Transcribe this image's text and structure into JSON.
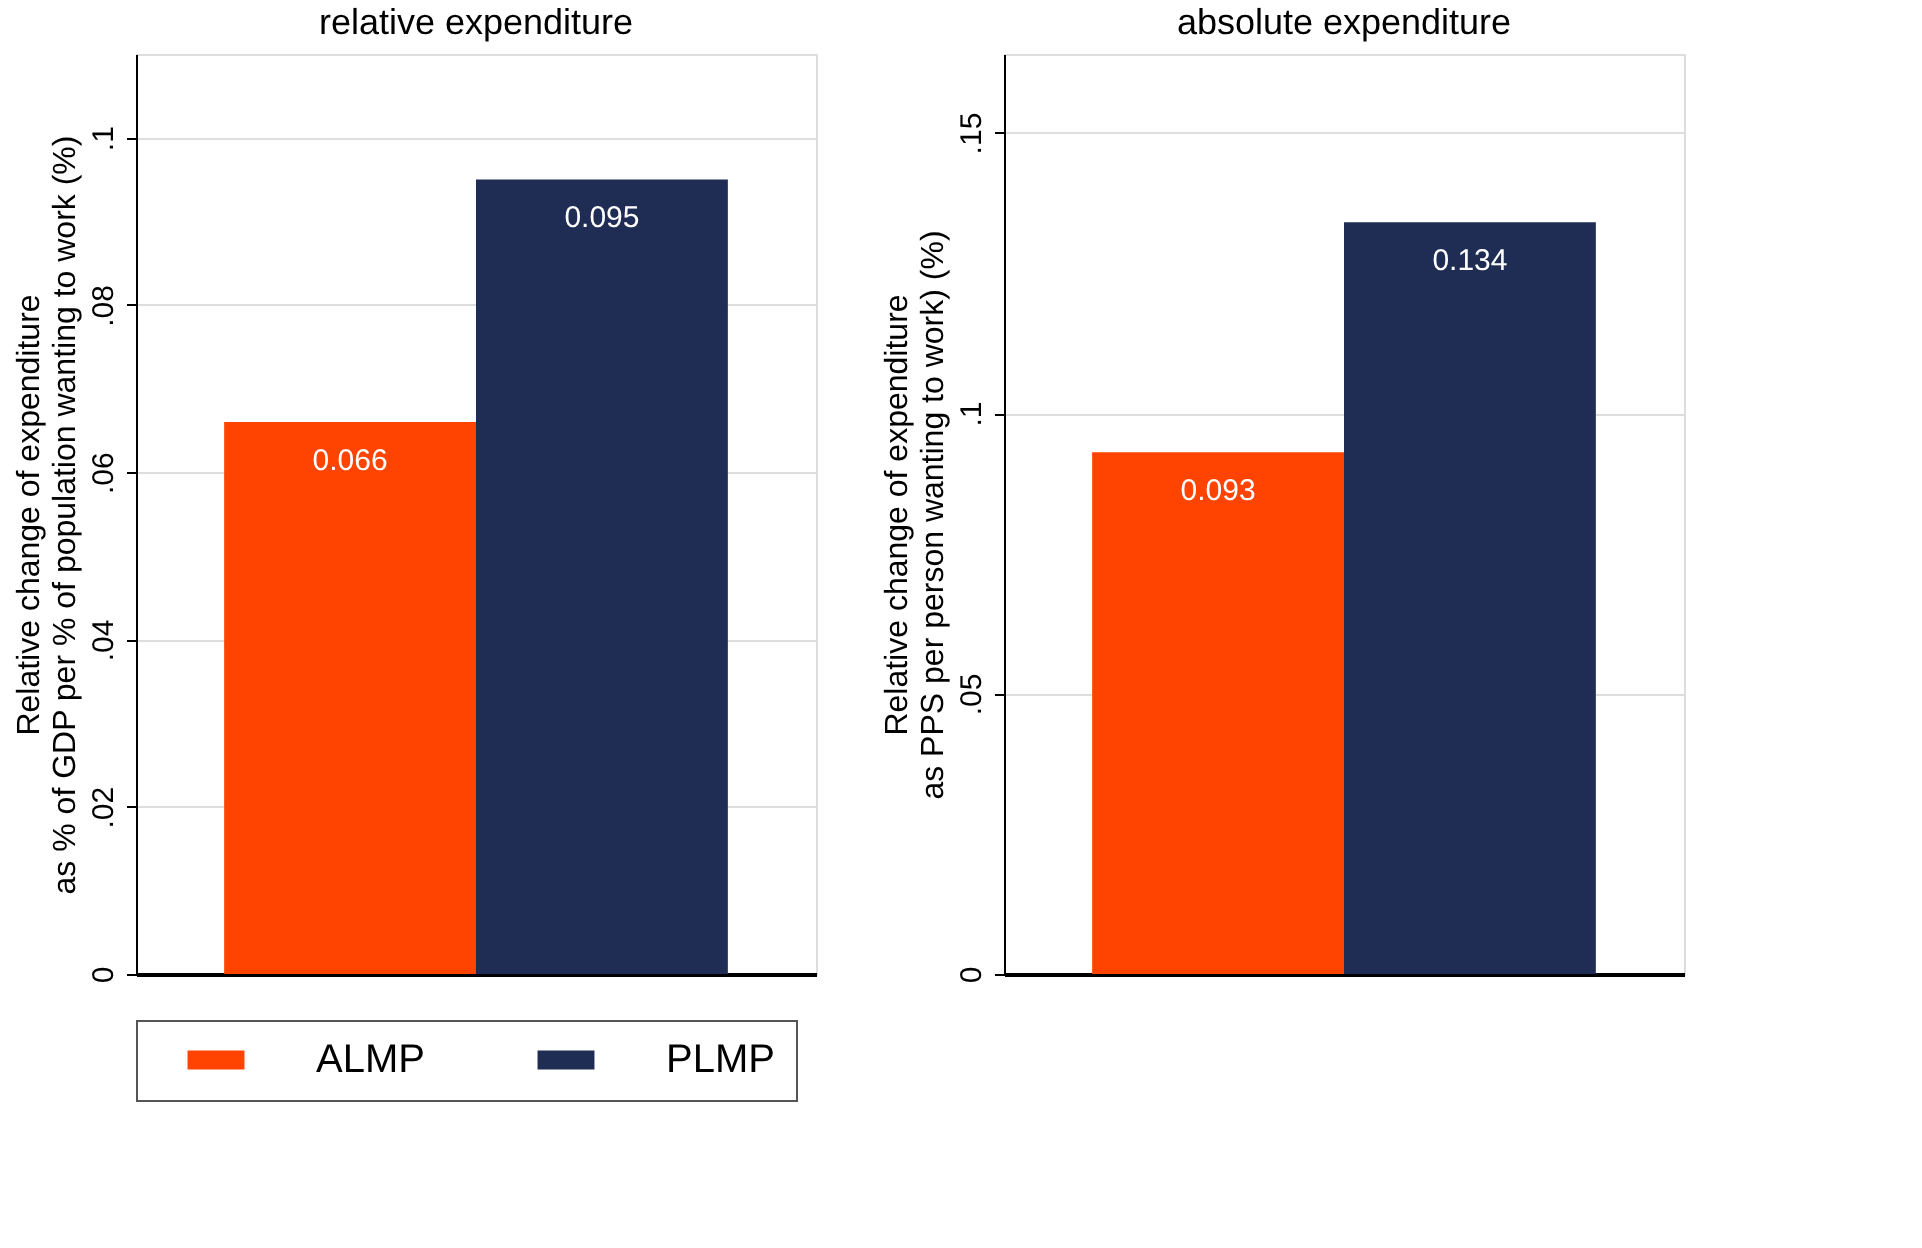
{
  "chart_data": [
    {
      "type": "bar",
      "title": "relative expenditure",
      "ylabel": "Relative change of expenditure\nas % of GDP per % of population wanting to work (%)",
      "categories": [
        null
      ],
      "series": [
        {
          "name": "ALMP",
          "color": "#fe4400",
          "values": [
            0.066
          ]
        },
        {
          "name": "PLMP",
          "color": "#1f2c54",
          "values": [
            0.095
          ]
        }
      ],
      "ylim": [
        0,
        0.11
      ],
      "yticks": [
        0,
        {
          "value": 0.02,
          "label": ".02"
        },
        {
          "value": 0.04,
          "label": ".04"
        },
        {
          "value": 0.06,
          "label": ".06"
        },
        {
          "value": 0.08,
          "label": ".08"
        },
        {
          "value": 0.1,
          "label": ".1"
        }
      ],
      "grid": "y",
      "data_labels": true,
      "legend": "bottom"
    },
    {
      "type": "bar",
      "title": "absolute expenditure",
      "ylabel": "Relative change of expenditure\nas PPS per person wanting to work) (%)",
      "categories": [
        null
      ],
      "series": [
        {
          "name": "ALMP",
          "color": "#fe4400",
          "values": [
            0.093
          ]
        },
        {
          "name": "PLMP",
          "color": "#1f2c54",
          "values": [
            0.134
          ]
        }
      ],
      "ylim": [
        0,
        0.164
      ],
      "yticks": [
        0,
        {
          "value": 0.05,
          "label": ".05"
        },
        {
          "value": 0.1,
          "label": ".1"
        },
        {
          "value": 0.15,
          "label": ".15"
        }
      ],
      "grid": "y",
      "data_labels": true,
      "legend": "bottom"
    }
  ]
}
